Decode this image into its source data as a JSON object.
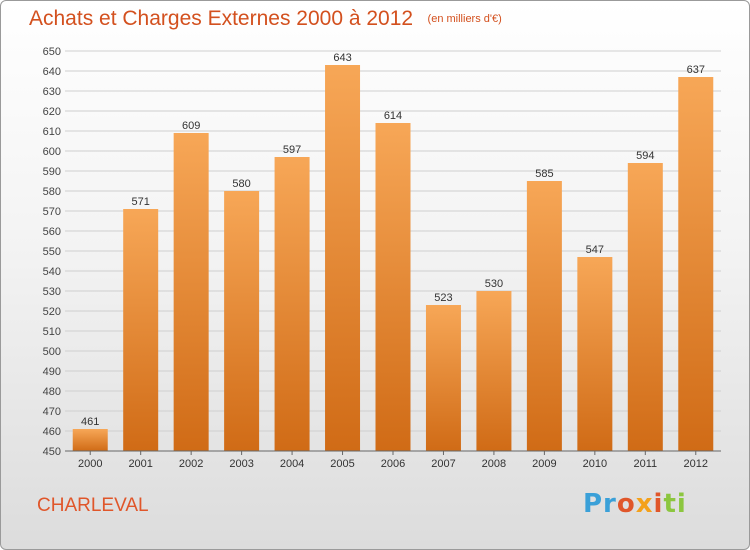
{
  "title": "Achats et Charges Externes 2000 à 2012",
  "subtitle": "(en milliers d'€)",
  "commune": "CHARLEVAL",
  "brand": {
    "text": "Proxiti",
    "p1": "Pr",
    "p2": "o",
    "p3": "x",
    "p4": "i",
    "p5": "ti"
  },
  "colors": {
    "title": "#d3501e",
    "bar_top": "#f7a757",
    "bar_bottom": "#d06b16",
    "grid": "#cfcfcf"
  },
  "chart_data": {
    "type": "bar",
    "categories": [
      "2000",
      "2001",
      "2002",
      "2003",
      "2004",
      "2005",
      "2006",
      "2007",
      "2008",
      "2009",
      "2010",
      "2011",
      "2012"
    ],
    "values": [
      461,
      571,
      609,
      580,
      597,
      643,
      614,
      523,
      530,
      585,
      547,
      594,
      637
    ],
    "ylim": [
      450,
      650
    ],
    "yticks": [
      450,
      460,
      470,
      480,
      490,
      500,
      510,
      520,
      530,
      540,
      550,
      560,
      570,
      580,
      590,
      600,
      610,
      620,
      630,
      640,
      650
    ],
    "grid": true
  }
}
